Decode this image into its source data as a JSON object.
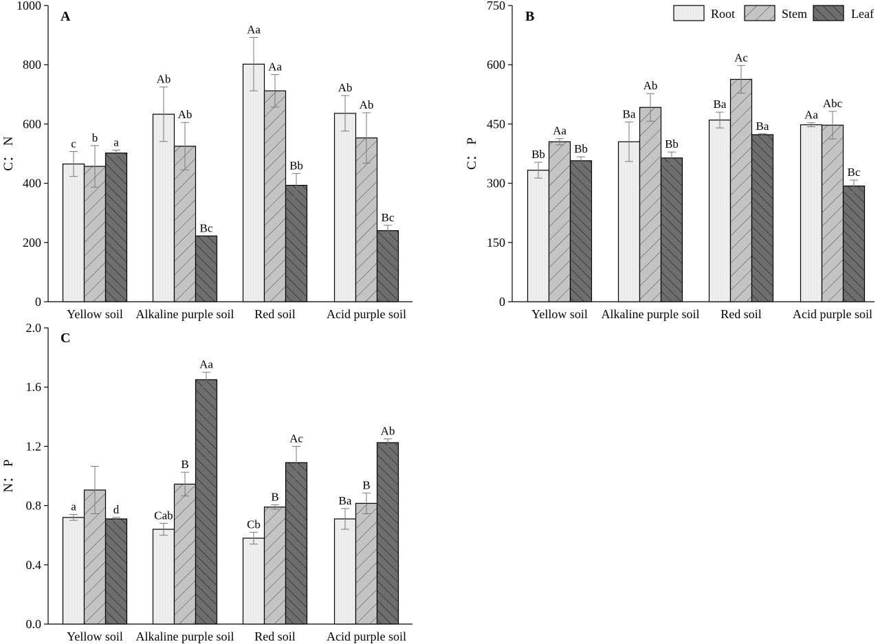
{
  "colors": {
    "root": "#eeeeee",
    "stem": "#c4c4c4",
    "leaf": "#6e6e6e",
    "stroke": "#000000",
    "errorbar": "#777777"
  },
  "legend": {
    "position": "top-right",
    "items": [
      {
        "key": "root",
        "label": "Root"
      },
      {
        "key": "stem",
        "label": "Stem"
      },
      {
        "key": "leaf",
        "label": "Leaf"
      }
    ]
  },
  "chart_data": [
    {
      "type": "bar",
      "panel": "A",
      "ylabel": "C： N",
      "ylim": [
        0,
        1000
      ],
      "yticks": [
        "0",
        "200",
        "400",
        "600",
        "800",
        "1000"
      ],
      "categories": [
        "Yellow soil",
        "Alkaline purple soil",
        "Red soil",
        "Acid purple soil"
      ],
      "series": [
        {
          "name": "Root",
          "values": [
            465,
            633,
            802,
            636
          ],
          "errors": [
            42,
            92,
            90,
            60
          ],
          "labels": [
            "c",
            "Ab",
            "Aa",
            "Ab"
          ]
        },
        {
          "name": "Stem",
          "values": [
            457,
            525,
            712,
            553
          ],
          "errors": [
            70,
            80,
            55,
            85
          ],
          "labels": [
            "b",
            "Ab",
            "Aa",
            "Ab"
          ]
        },
        {
          "name": "Leaf",
          "values": [
            502,
            222,
            393,
            240
          ],
          "errors": [
            10,
            0,
            40,
            18
          ],
          "labels": [
            "a",
            "Bc",
            "Bb",
            "Bc"
          ]
        }
      ]
    },
    {
      "type": "bar",
      "panel": "B",
      "ylabel": "C： P",
      "ylim": [
        0,
        750
      ],
      "yticks": [
        "0",
        "150",
        "300",
        "450",
        "600",
        "750"
      ],
      "categories": [
        "Yellow soil",
        "Alkaline purple soil",
        "Red soil",
        "Acid purple soil"
      ],
      "series": [
        {
          "name": "Root",
          "values": [
            333,
            405,
            460,
            448
          ],
          "errors": [
            20,
            50,
            20,
            5
          ],
          "labels": [
            "Bb",
            "Ba",
            "Ba",
            "Aa"
          ]
        },
        {
          "name": "Stem",
          "values": [
            405,
            492,
            563,
            447
          ],
          "errors": [
            8,
            35,
            35,
            35
          ],
          "labels": [
            "Aa",
            "Ab",
            "Ac",
            "Abc"
          ]
        },
        {
          "name": "Leaf",
          "values": [
            357,
            364,
            423,
            293
          ],
          "errors": [
            10,
            15,
            2,
            15
          ],
          "labels": [
            "Bb",
            "Bb",
            "Ba",
            "Bc"
          ]
        }
      ]
    },
    {
      "type": "bar",
      "panel": "C",
      "ylabel": "N： P",
      "ylim": [
        0,
        2.0
      ],
      "yticks": [
        "0.0",
        "0.4",
        "0.8",
        "1.2",
        "1.6",
        "2.0"
      ],
      "categories": [
        "Yellow soil",
        "Alkaline purple soil",
        "Red soil",
        "Acid purple soil"
      ],
      "series": [
        {
          "name": "Root",
          "values": [
            0.72,
            0.64,
            0.58,
            0.71
          ],
          "errors": [
            0.02,
            0.04,
            0.04,
            0.07
          ],
          "labels": [
            "a",
            "Cab",
            "Cb",
            "Ba"
          ]
        },
        {
          "name": "Stem",
          "values": [
            0.905,
            0.945,
            0.79,
            0.815
          ],
          "errors": [
            0.16,
            0.08,
            0.015,
            0.07
          ],
          "labels": [
            "",
            "B",
            "B",
            "B"
          ]
        },
        {
          "name": "Leaf",
          "values": [
            0.71,
            1.65,
            1.09,
            1.225
          ],
          "errors": [
            0.01,
            0.05,
            0.11,
            0.025
          ],
          "labels": [
            "d",
            "Aa",
            "Ac",
            "Ab"
          ]
        }
      ]
    }
  ]
}
